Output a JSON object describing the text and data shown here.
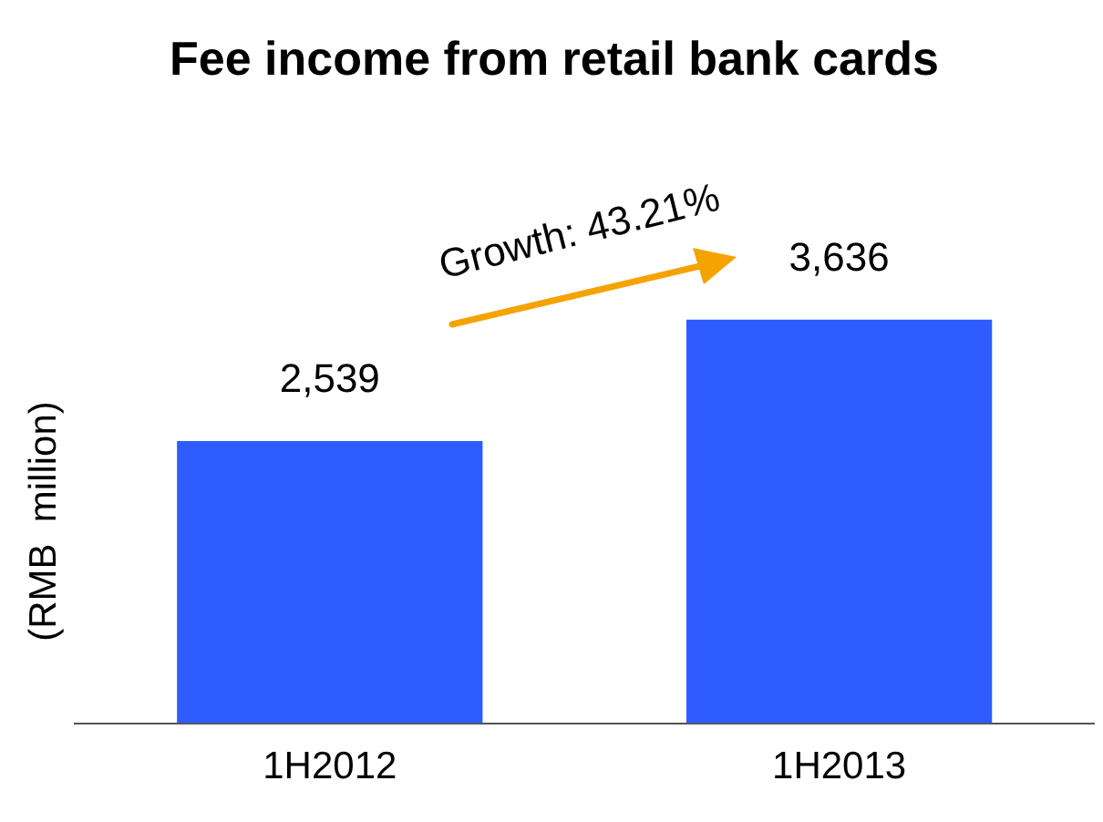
{
  "chart_data": {
    "type": "bar",
    "title": "Fee income from retail bank cards",
    "ylabel": "(RMB  million)",
    "categories": [
      "1H2012",
      "1H2013"
    ],
    "values": [
      2539,
      3636
    ],
    "color": "#2f5cff",
    "value_labels": [
      "2,539",
      "3,636"
    ],
    "annotations": [
      "Growth: 43.21%"
    ],
    "grid": false,
    "legend": false,
    "tick_labels": "x"
  }
}
